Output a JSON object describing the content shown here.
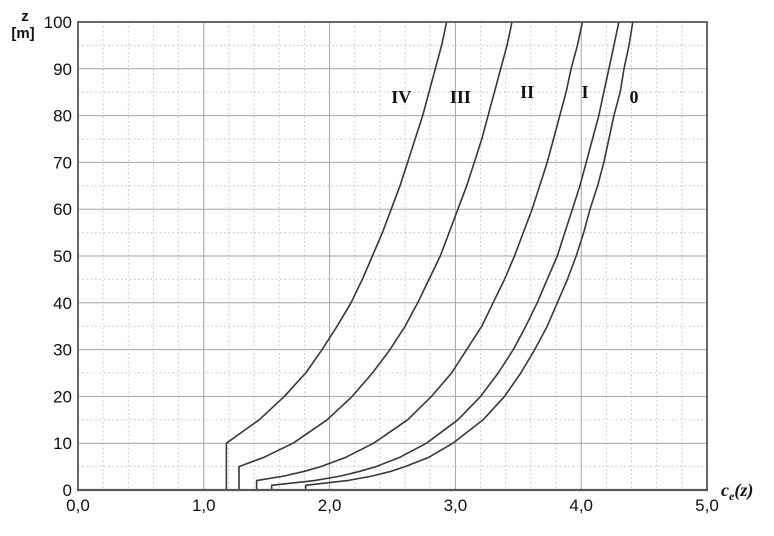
{
  "chart_data": {
    "type": "line",
    "title": "",
    "xlabel": {
      "symbol": "c",
      "subscript": "e",
      "argument": "(z)"
    },
    "ylabel": {
      "line1": "z",
      "line2": "[m]"
    },
    "xlim": [
      0,
      5
    ],
    "ylim": [
      0,
      100
    ],
    "x_ticks": [
      {
        "v": 0,
        "label": "0,0"
      },
      {
        "v": 1,
        "label": "1,0"
      },
      {
        "v": 2,
        "label": "2,0"
      },
      {
        "v": 3,
        "label": "3,0"
      },
      {
        "v": 4,
        "label": "4,0"
      },
      {
        "v": 5,
        "label": "5,0"
      }
    ],
    "y_ticks": [
      {
        "v": 0,
        "label": "0"
      },
      {
        "v": 10,
        "label": "10"
      },
      {
        "v": 20,
        "label": "20"
      },
      {
        "v": 30,
        "label": "30"
      },
      {
        "v": 40,
        "label": "40"
      },
      {
        "v": 50,
        "label": "50"
      },
      {
        "v": 60,
        "label": "60"
      },
      {
        "v": 70,
        "label": "70"
      },
      {
        "v": 80,
        "label": "80"
      },
      {
        "v": 90,
        "label": "90"
      },
      {
        "v": 100,
        "label": "100"
      }
    ],
    "x_minor_step": 0.2,
    "y_minor_step": 5,
    "grid": {
      "major_solid": true,
      "minor_dotted": true
    },
    "legend_position": "labels-on-curves",
    "series": [
      {
        "name": "curve-IV",
        "label": "IV",
        "label_pos": {
          "x": 2.57,
          "z": 84
        },
        "points": [
          [
            1.18,
            0
          ],
          [
            1.18,
            10
          ],
          [
            1.44,
            15
          ],
          [
            1.64,
            20
          ],
          [
            1.81,
            25
          ],
          [
            1.94,
            30
          ],
          [
            2.06,
            35
          ],
          [
            2.17,
            40
          ],
          [
            2.26,
            45
          ],
          [
            2.34,
            50
          ],
          [
            2.42,
            55
          ],
          [
            2.49,
            60
          ],
          [
            2.56,
            65
          ],
          [
            2.62,
            70
          ],
          [
            2.68,
            75
          ],
          [
            2.74,
            80
          ],
          [
            2.79,
            85
          ],
          [
            2.84,
            90
          ],
          [
            2.89,
            95
          ],
          [
            2.93,
            100
          ]
        ]
      },
      {
        "name": "curve-III",
        "label": "III",
        "label_pos": {
          "x": 3.04,
          "z": 84
        },
        "points": [
          [
            1.28,
            0
          ],
          [
            1.28,
            5
          ],
          [
            1.48,
            7
          ],
          [
            1.71,
            10
          ],
          [
            1.98,
            15
          ],
          [
            2.18,
            20
          ],
          [
            2.34,
            25
          ],
          [
            2.48,
            30
          ],
          [
            2.6,
            35
          ],
          [
            2.7,
            40
          ],
          [
            2.79,
            45
          ],
          [
            2.88,
            50
          ],
          [
            2.95,
            55
          ],
          [
            3.02,
            60
          ],
          [
            3.09,
            65
          ],
          [
            3.15,
            70
          ],
          [
            3.21,
            75
          ],
          [
            3.26,
            80
          ],
          [
            3.31,
            85
          ],
          [
            3.36,
            90
          ],
          [
            3.41,
            95
          ],
          [
            3.45,
            100
          ]
        ]
      },
      {
        "name": "curve-II",
        "label": "II",
        "label_pos": {
          "x": 3.57,
          "z": 85
        },
        "points": [
          [
            1.42,
            0
          ],
          [
            1.42,
            2
          ],
          [
            1.64,
            3
          ],
          [
            1.8,
            4
          ],
          [
            1.93,
            5
          ],
          [
            2.13,
            7
          ],
          [
            2.35,
            10
          ],
          [
            2.62,
            15
          ],
          [
            2.81,
            20
          ],
          [
            2.97,
            25
          ],
          [
            3.09,
            30
          ],
          [
            3.21,
            35
          ],
          [
            3.3,
            40
          ],
          [
            3.39,
            45
          ],
          [
            3.47,
            50
          ],
          [
            3.54,
            55
          ],
          [
            3.61,
            60
          ],
          [
            3.67,
            65
          ],
          [
            3.73,
            70
          ],
          [
            3.78,
            75
          ],
          [
            3.83,
            80
          ],
          [
            3.88,
            85
          ],
          [
            3.92,
            90
          ],
          [
            3.97,
            95
          ],
          [
            4.01,
            100
          ]
        ]
      },
      {
        "name": "curve-I",
        "label": "I",
        "label_pos": {
          "x": 4.03,
          "z": 85
        },
        "points": [
          [
            1.54,
            0
          ],
          [
            1.54,
            1
          ],
          [
            1.88,
            2
          ],
          [
            2.09,
            3
          ],
          [
            2.24,
            4
          ],
          [
            2.37,
            5
          ],
          [
            2.56,
            7
          ],
          [
            2.77,
            10
          ],
          [
            3.02,
            15
          ],
          [
            3.2,
            20
          ],
          [
            3.34,
            25
          ],
          [
            3.46,
            30
          ],
          [
            3.56,
            35
          ],
          [
            3.65,
            40
          ],
          [
            3.73,
            45
          ],
          [
            3.81,
            50
          ],
          [
            3.87,
            55
          ],
          [
            3.93,
            60
          ],
          [
            3.99,
            65
          ],
          [
            4.04,
            70
          ],
          [
            4.09,
            75
          ],
          [
            4.14,
            80
          ],
          [
            4.18,
            85
          ],
          [
            4.22,
            90
          ],
          [
            4.26,
            95
          ],
          [
            4.3,
            100
          ]
        ]
      },
      {
        "name": "curve-0",
        "label": "0",
        "label_pos": {
          "x": 4.42,
          "z": 84
        },
        "points": [
          [
            1.81,
            0
          ],
          [
            1.81,
            1
          ],
          [
            2.14,
            2
          ],
          [
            2.34,
            3
          ],
          [
            2.49,
            4
          ],
          [
            2.6,
            5
          ],
          [
            2.79,
            7
          ],
          [
            2.98,
            10
          ],
          [
            3.22,
            15
          ],
          [
            3.39,
            20
          ],
          [
            3.52,
            25
          ],
          [
            3.63,
            30
          ],
          [
            3.73,
            35
          ],
          [
            3.81,
            40
          ],
          [
            3.89,
            45
          ],
          [
            3.96,
            50
          ],
          [
            4.02,
            55
          ],
          [
            4.07,
            60
          ],
          [
            4.13,
            65
          ],
          [
            4.18,
            70
          ],
          [
            4.22,
            75
          ],
          [
            4.26,
            80
          ],
          [
            4.31,
            85
          ],
          [
            4.34,
            90
          ],
          [
            4.38,
            95
          ],
          [
            4.41,
            100
          ]
        ]
      }
    ],
    "colors": {
      "curve": "#383838",
      "frame": "#585858",
      "grid_major": "#a6a6a6",
      "grid_minor": "#c2c2c2",
      "text": "#111111",
      "background": "#ffffff"
    }
  }
}
